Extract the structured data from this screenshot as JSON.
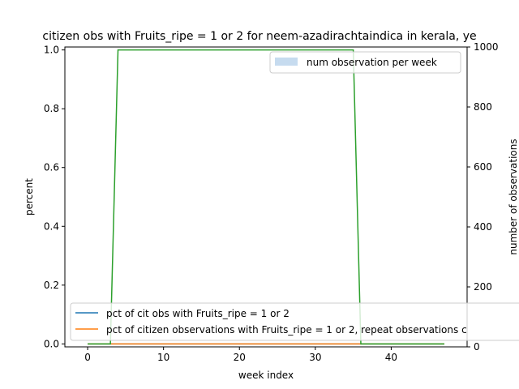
{
  "chart_data": {
    "type": "line",
    "title": "citizen obs with Fruits_ripe = 1 or 2 for neem-azadirachtaindica in kerala, ye",
    "xlabel": "week index",
    "ylabel": "percent",
    "y2label": "number of observations",
    "xlim": [
      -3.0,
      50.0
    ],
    "ylim": [
      -0.01,
      1.01
    ],
    "y2lim": [
      0,
      1000
    ],
    "xticks": [
      0,
      10,
      20,
      30,
      40
    ],
    "yticks": [
      0.0,
      0.2,
      0.4,
      0.6,
      0.8,
      1.0
    ],
    "y2ticks": [
      0,
      200,
      400,
      600,
      800,
      1000
    ],
    "grid": false,
    "x": [
      0,
      1,
      2,
      3,
      4,
      5,
      6,
      7,
      8,
      9,
      10,
      11,
      12,
      13,
      14,
      15,
      16,
      17,
      18,
      19,
      20,
      21,
      22,
      23,
      24,
      25,
      26,
      27,
      28,
      29,
      30,
      31,
      32,
      33,
      34,
      35,
      36,
      37,
      38,
      39,
      40,
      41,
      42,
      43,
      44,
      45,
      46,
      47
    ],
    "series": [
      {
        "name": "pct of cit obs with Fruits_ripe = 1 or 2",
        "color": "#1f77b4",
        "axis": "left",
        "values": [
          0,
          0,
          0,
          0,
          0,
          0,
          0,
          0,
          0,
          0,
          0,
          0,
          0,
          0,
          0,
          0,
          0,
          0,
          0,
          0,
          0,
          0,
          0,
          0,
          0,
          0,
          0,
          0,
          0,
          0,
          0,
          0,
          0,
          0,
          0,
          0,
          0,
          0,
          0,
          0,
          0,
          0,
          0,
          0,
          0,
          0,
          0,
          0
        ]
      },
      {
        "name": "pct of citizen observations with Fruits_ripe = 1 or 2, repeat observations c",
        "color": "#ff7f0e",
        "axis": "left",
        "values": [
          0,
          0,
          0,
          0,
          0,
          0,
          0,
          0,
          0,
          0,
          0,
          0,
          0,
          0,
          0,
          0,
          0,
          0,
          0,
          0,
          0,
          0,
          0,
          0,
          0,
          0,
          0,
          0,
          0,
          0,
          0,
          0,
          0,
          0,
          0,
          0,
          0,
          0,
          0,
          0,
          0,
          0,
          0,
          0,
          0,
          0,
          0,
          0
        ]
      },
      {
        "name": "",
        "color": "#2ca02c",
        "axis": "left",
        "values": [
          0,
          0,
          0,
          0,
          1,
          1,
          1,
          1,
          1,
          1,
          1,
          1,
          1,
          1,
          1,
          1,
          1,
          1,
          1,
          1,
          1,
          1,
          1,
          1,
          1,
          1,
          1,
          1,
          1,
          1,
          1,
          1,
          1,
          1,
          1,
          1,
          0,
          0,
          0,
          0,
          0,
          0,
          0,
          0,
          0,
          0,
          0,
          0
        ]
      }
    ],
    "bars": {
      "name": "num observation per week",
      "color": "#c6dbef",
      "axis": "right",
      "values": [
        0,
        0,
        0,
        0,
        0,
        0,
        0,
        0,
        0,
        0,
        0,
        0,
        0,
        0,
        0,
        0,
        0,
        0,
        0,
        0,
        0,
        0,
        0,
        0,
        0,
        0,
        0,
        0,
        0,
        0,
        0,
        0,
        0,
        0,
        0,
        0,
        0,
        0,
        0,
        0,
        0,
        0,
        0,
        0,
        0,
        0,
        0,
        0
      ]
    },
    "legend_right": {
      "placement": "top-right",
      "entries": [
        "num observation per week"
      ]
    },
    "legend_left": {
      "placement": "lower-left",
      "entries": [
        "pct of cit obs with Fruits_ripe = 1 or 2",
        "pct of citizen observations with Fruits_ripe = 1 or 2, repeat observations c"
      ]
    }
  }
}
